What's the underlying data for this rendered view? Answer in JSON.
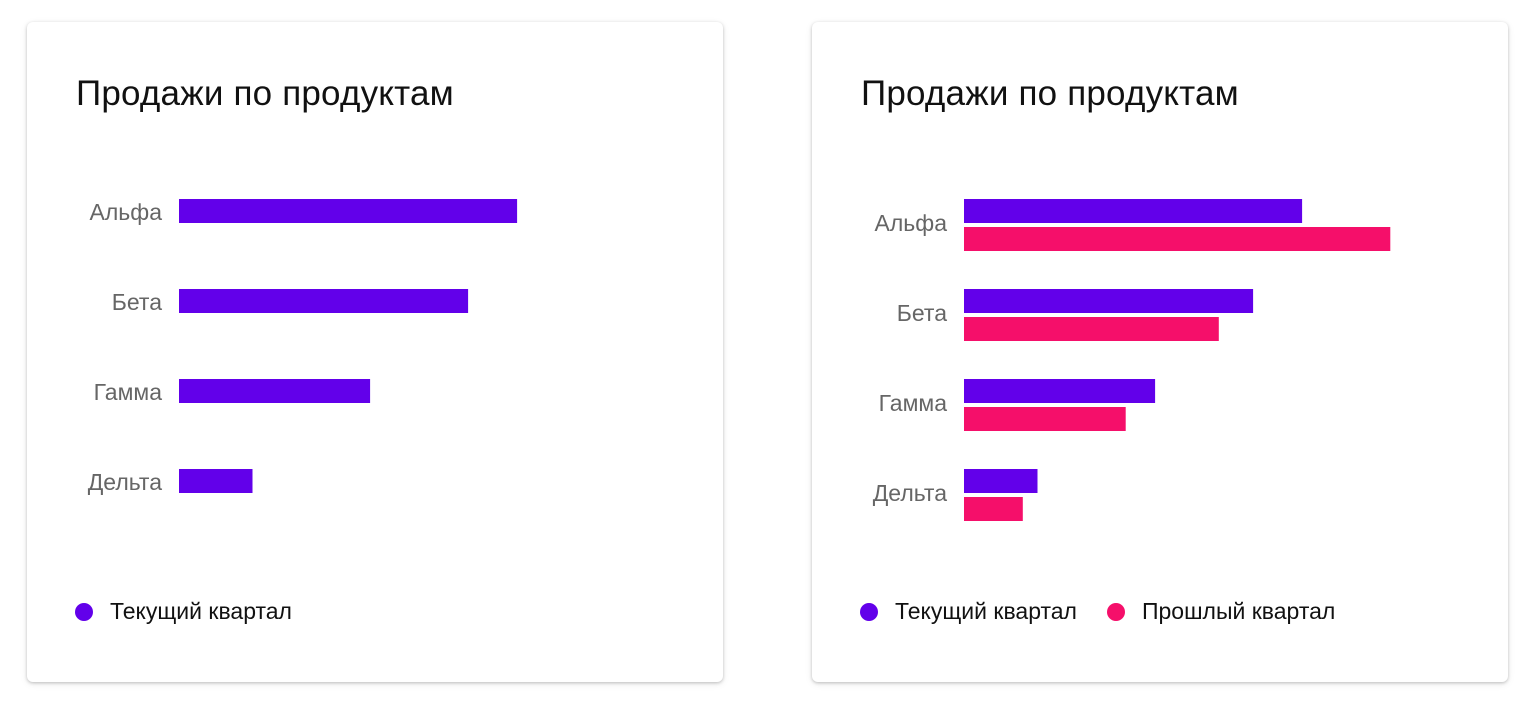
{
  "colors": {
    "current": "#6200EA",
    "previous": "#F50F6A"
  },
  "chart_data": [
    {
      "type": "bar",
      "orientation": "horizontal",
      "title": "Продажи по продуктам",
      "categories": [
        "Альфа",
        "Бета",
        "Гамма",
        "Дельта"
      ],
      "series": [
        {
          "name": "Текущий квартал",
          "values": [
            69,
            59,
            39,
            15
          ]
        }
      ],
      "xlim": [
        0,
        100
      ],
      "grid": false,
      "legend": "bottom-left"
    },
    {
      "type": "bar",
      "orientation": "horizontal",
      "title": "Продажи по продуктам",
      "categories": [
        "Альфа",
        "Бета",
        "Гамма",
        "Дельта"
      ],
      "series": [
        {
          "name": "Текущий квартал",
          "values": [
            69,
            59,
            39,
            15
          ]
        },
        {
          "name": "Прошлый квартал",
          "values": [
            87,
            52,
            33,
            12
          ]
        }
      ],
      "xlim": [
        0,
        100
      ],
      "grid": false,
      "legend": "bottom-left"
    }
  ]
}
